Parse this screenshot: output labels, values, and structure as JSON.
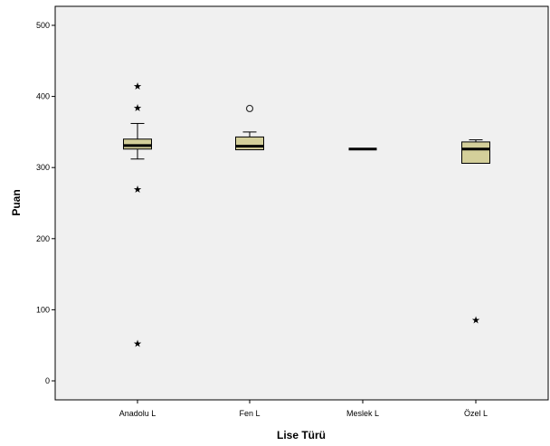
{
  "chart_data": {
    "type": "boxplot",
    "xlabel": "Lise Türü",
    "ylabel": "Puan",
    "ylim": [
      -25,
      530
    ],
    "yticks": [
      0,
      100,
      200,
      300,
      400,
      500
    ],
    "grid": false,
    "colors": {
      "plot_bg": "#f0f0f0",
      "box_fill": "#d4cf9a",
      "stroke": "#000000"
    },
    "categories": [
      "Anadolu L",
      "Fen L",
      "Meslek L",
      "Özel L"
    ],
    "boxes": [
      {
        "category": "Anadolu L",
        "whisker_low": 312,
        "q1": 326,
        "median": 331,
        "q3": 340,
        "whisker_high": 362,
        "outliers": [
          {
            "value": 384,
            "marker": "star"
          },
          {
            "value": 415,
            "marker": "star"
          },
          {
            "value": 270,
            "marker": "star"
          },
          {
            "value": 53,
            "marker": "star"
          }
        ]
      },
      {
        "category": "Fen L",
        "whisker_low": 325,
        "q1": 325,
        "median": 330,
        "q3": 343,
        "whisker_high": 350,
        "outliers": [
          {
            "value": 383,
            "marker": "circle"
          }
        ]
      },
      {
        "category": "Meslek L",
        "whisker_low": 326,
        "q1": 326,
        "median": 326,
        "q3": 326,
        "whisker_high": 326,
        "outliers": []
      },
      {
        "category": "Özel L",
        "whisker_low": 306,
        "q1": 306,
        "median": 326,
        "q3": 336,
        "whisker_high": 339,
        "outliers": [
          {
            "value": 86,
            "marker": "star"
          }
        ]
      }
    ]
  }
}
